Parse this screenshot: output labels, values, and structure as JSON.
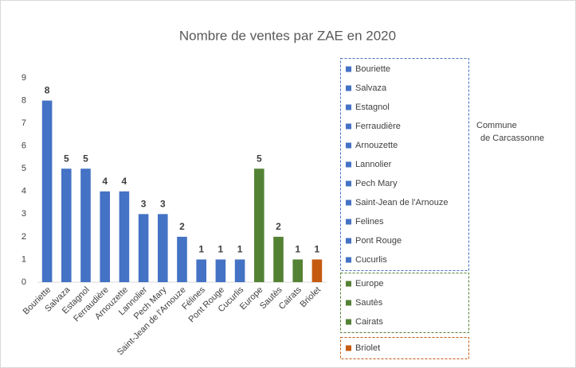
{
  "chart_data": {
    "type": "bar",
    "title": "Nombre de ventes par ZAE en 2020",
    "categories": [
      "Bouriette",
      "Salvaza",
      "Estagnol",
      "Ferraudière",
      "Arnouzette",
      "Lannolier",
      "Pech Mary",
      "Saint-Jean de l'Arnouze",
      "Félines",
      "Pont Rouge",
      "Cucurlis",
      "Europe",
      "Sautès",
      "Cairats",
      "Briolet"
    ],
    "values": [
      8,
      5,
      5,
      4,
      4,
      3,
      3,
      2,
      1,
      1,
      1,
      5,
      2,
      1,
      1
    ],
    "colors": [
      "#4472c4",
      "#4472c4",
      "#4472c4",
      "#4472c4",
      "#4472c4",
      "#4472c4",
      "#4472c4",
      "#4472c4",
      "#4472c4",
      "#4472c4",
      "#4472c4",
      "#548235",
      "#548235",
      "#548235",
      "#c55a11"
    ],
    "ylim": [
      0,
      9
    ],
    "yticks": [
      0,
      1,
      2,
      3,
      4,
      5,
      6,
      7,
      8,
      9
    ],
    "grid": false,
    "legend": [
      {
        "color": "#4472c4",
        "border": "#4472c4",
        "entries": [
          "Bouriette",
          "Salvaza",
          "Estagnol",
          "Ferraudière",
          "Arnouzette",
          "Lannolier",
          "Pech Mary",
          "Saint-Jean de l'Arnouze",
          "Felines",
          "Pont Rouge",
          "Cucurlis"
        ]
      },
      {
        "color": "#548235",
        "border": "#548235",
        "entries": [
          "Europe",
          "Sautès",
          "Cairats"
        ]
      },
      {
        "color": "#c55a11",
        "border": "#c55a11",
        "entries": [
          "Briolet"
        ]
      }
    ],
    "annotation": [
      "Commune",
      "de Carcassonne"
    ]
  }
}
